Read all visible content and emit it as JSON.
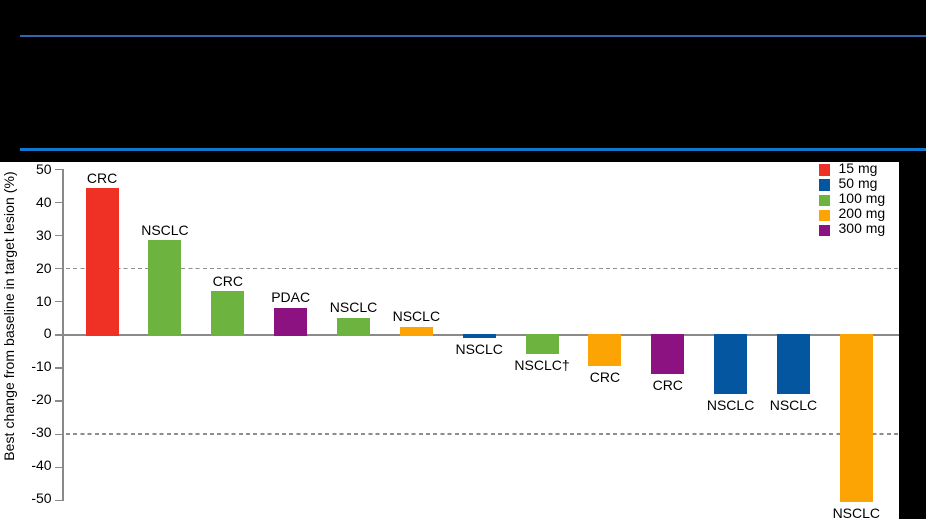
{
  "banner": {
    "background": "#000000",
    "top_rule_color": "#3363af",
    "bottom_rule_color": "#1277ce"
  },
  "chart_data": {
    "type": "bar",
    "subtype": "waterfall",
    "title": "",
    "xlabel": "",
    "ylabel": "Best change from baseline in target lesion (%)",
    "ylim": [
      -50,
      50
    ],
    "yticks": [
      50,
      40,
      30,
      20,
      10,
      0,
      -10,
      -20,
      -30,
      -40,
      -50
    ],
    "reference_lines": [
      20,
      -30
    ],
    "grid": "off",
    "legend_position": "top-right",
    "legend_title": "",
    "series_note": "each bar = one patient; color = dose level; bar label = tumor type",
    "legend": [
      {
        "label": "15 mg",
        "color": "#ee3124"
      },
      {
        "label": "50 mg",
        "color": "#0556a0"
      },
      {
        "label": "100 mg",
        "color": "#6cb33f"
      },
      {
        "label": "200 mg",
        "color": "#fca404"
      },
      {
        "label": "300 mg",
        "color": "#8c1282"
      }
    ],
    "bars": [
      {
        "label": "CRC",
        "dose": "15 mg",
        "value": 44.3
      },
      {
        "label": "NSCLC",
        "dose": "100 mg",
        "value": 28.6
      },
      {
        "label": "CRC",
        "dose": "100 mg",
        "value": 13.2
      },
      {
        "label": "PDAC",
        "dose": "300 mg",
        "value": 8.2
      },
      {
        "label": "NSCLC",
        "dose": "100 mg",
        "value": 5.2
      },
      {
        "label": "NSCLC",
        "dose": "200 mg",
        "value": 2.5
      },
      {
        "label": "NSCLC",
        "dose": "50 mg",
        "value": -1.0
      },
      {
        "label": "NSCLC†",
        "dose": "100 mg",
        "value": -5.9
      },
      {
        "label": "CRC",
        "dose": "200 mg",
        "value": -9.5
      },
      {
        "label": "CRC",
        "dose": "300 mg",
        "value": -11.8
      },
      {
        "label": "NSCLC",
        "dose": "50 mg",
        "value": -17.8
      },
      {
        "label": "NSCLC",
        "dose": "50 mg",
        "value": -17.8
      },
      {
        "label": "NSCLC",
        "dose": "200 mg",
        "value": -50.6
      }
    ],
    "axis_color": "#898989",
    "zero_line_color": "#8a8a8a",
    "dashed_line_color": "#8e8e8e",
    "text_color": "#000000"
  }
}
